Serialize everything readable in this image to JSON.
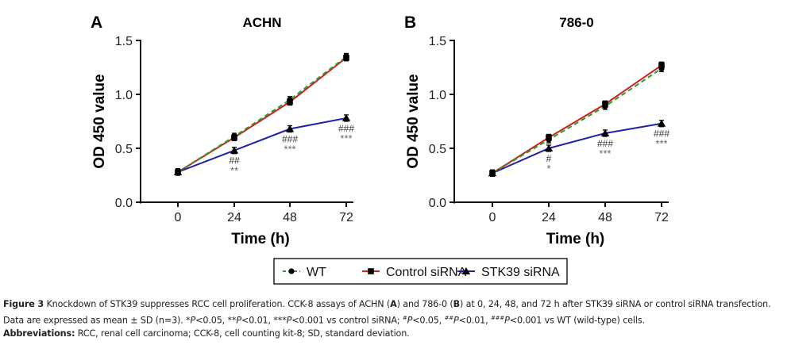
{
  "chart_data": [
    {
      "type": "line",
      "panel_label": "A",
      "title": "ACHN",
      "xlabel": "Time (h)",
      "ylabel": "OD 450 value",
      "x": [
        0,
        24,
        48,
        72
      ],
      "x_tick_labels": [
        "0",
        "24",
        "48",
        "72"
      ],
      "ylim": [
        0,
        1.5
      ],
      "y_ticks": [
        0.0,
        0.5,
        1.0,
        1.5
      ],
      "y_tick_labels": [
        "0.0",
        "0.5",
        "1.0",
        "1.5"
      ],
      "grid": false,
      "series": [
        {
          "name": "WT",
          "values": [
            0.28,
            0.61,
            0.95,
            1.35
          ],
          "color": "#2e9c2e",
          "style": "dashed",
          "marker": "circle"
        },
        {
          "name": "Control siRNA",
          "values": [
            0.28,
            0.6,
            0.93,
            1.34
          ],
          "color": "#cc2222",
          "style": "solid",
          "marker": "square"
        },
        {
          "name": "STK39 siRNA",
          "values": [
            0.28,
            0.48,
            0.68,
            0.78
          ],
          "color": "#1f1fa8",
          "style": "solid",
          "marker": "triangle"
        }
      ],
      "annotations": [
        {
          "x": 24,
          "hash": "##",
          "star": "**"
        },
        {
          "x": 48,
          "hash": "###",
          "star": "***"
        },
        {
          "x": 72,
          "hash": "###",
          "star": "***"
        }
      ]
    },
    {
      "type": "line",
      "panel_label": "B",
      "title": "786-0",
      "xlabel": "Time (h)",
      "ylabel": "OD 450 value",
      "x": [
        0,
        24,
        48,
        72
      ],
      "x_tick_labels": [
        "0",
        "24",
        "48",
        "72"
      ],
      "ylim": [
        0,
        1.5
      ],
      "y_ticks": [
        0.0,
        0.5,
        1.0,
        1.5
      ],
      "y_tick_labels": [
        "0.0",
        "0.5",
        "1.0",
        "1.5"
      ],
      "grid": false,
      "series": [
        {
          "name": "WT",
          "values": [
            0.27,
            0.58,
            0.89,
            1.24
          ],
          "color": "#2e9c2e",
          "style": "dashed",
          "marker": "circle"
        },
        {
          "name": "Control siRNA",
          "values": [
            0.27,
            0.6,
            0.91,
            1.27
          ],
          "color": "#cc2222",
          "style": "solid",
          "marker": "square"
        },
        {
          "name": "STK39 siRNA",
          "values": [
            0.27,
            0.5,
            0.64,
            0.73
          ],
          "color": "#1f1fa8",
          "style": "solid",
          "marker": "triangle"
        }
      ],
      "annotations": [
        {
          "x": 24,
          "hash": "#",
          "star": "*"
        },
        {
          "x": 48,
          "hash": "###",
          "star": "***"
        },
        {
          "x": 72,
          "hash": "###",
          "star": "***"
        }
      ]
    }
  ],
  "legend": {
    "placement": "bottom-center",
    "items": [
      {
        "label": "WT",
        "color": "#2e9c2e",
        "style": "dashed",
        "marker": "circle"
      },
      {
        "label": "Control siRNA",
        "color": "#cc2222",
        "style": "solid",
        "marker": "square"
      },
      {
        "label": "STK39 siRNA",
        "color": "#1f1fa8",
        "style": "solid",
        "marker": "triangle"
      }
    ]
  },
  "caption": {
    "figure_label": "Figure 3",
    "line1_a": " Knockdown of STK39 suppresses RCC cell proliferation. CCK-8 assays of ACHN (",
    "panel_a": "A",
    "line1_b": ") and 786-0 (",
    "panel_b": "B",
    "line1_c": ") at 0, 24, 48, and 72 h after STK39 siRNA or control siRNA transfection. Data are expressed as mean ± SD (n=3). *",
    "p1": "P",
    "s1": "<0.05, **",
    "p2": "P",
    "s2": "<0.01, ***",
    "p3": "P",
    "s3": "<0.001 vs control siRNA; ",
    "h1": "#",
    "p4": "P",
    "s4": "<0.05, ",
    "h2": "##",
    "p5": "P",
    "s5": "<0.01, ",
    "h3": "###",
    "p6": "P",
    "s6": "<0.001 vs WT (wild-type) cells.",
    "abbr_label": "Abbreviations:",
    "abbr_text": " RCC, renal cell carcinoma; CCK-8, cell counting kit-8; SD, standard deviation."
  }
}
